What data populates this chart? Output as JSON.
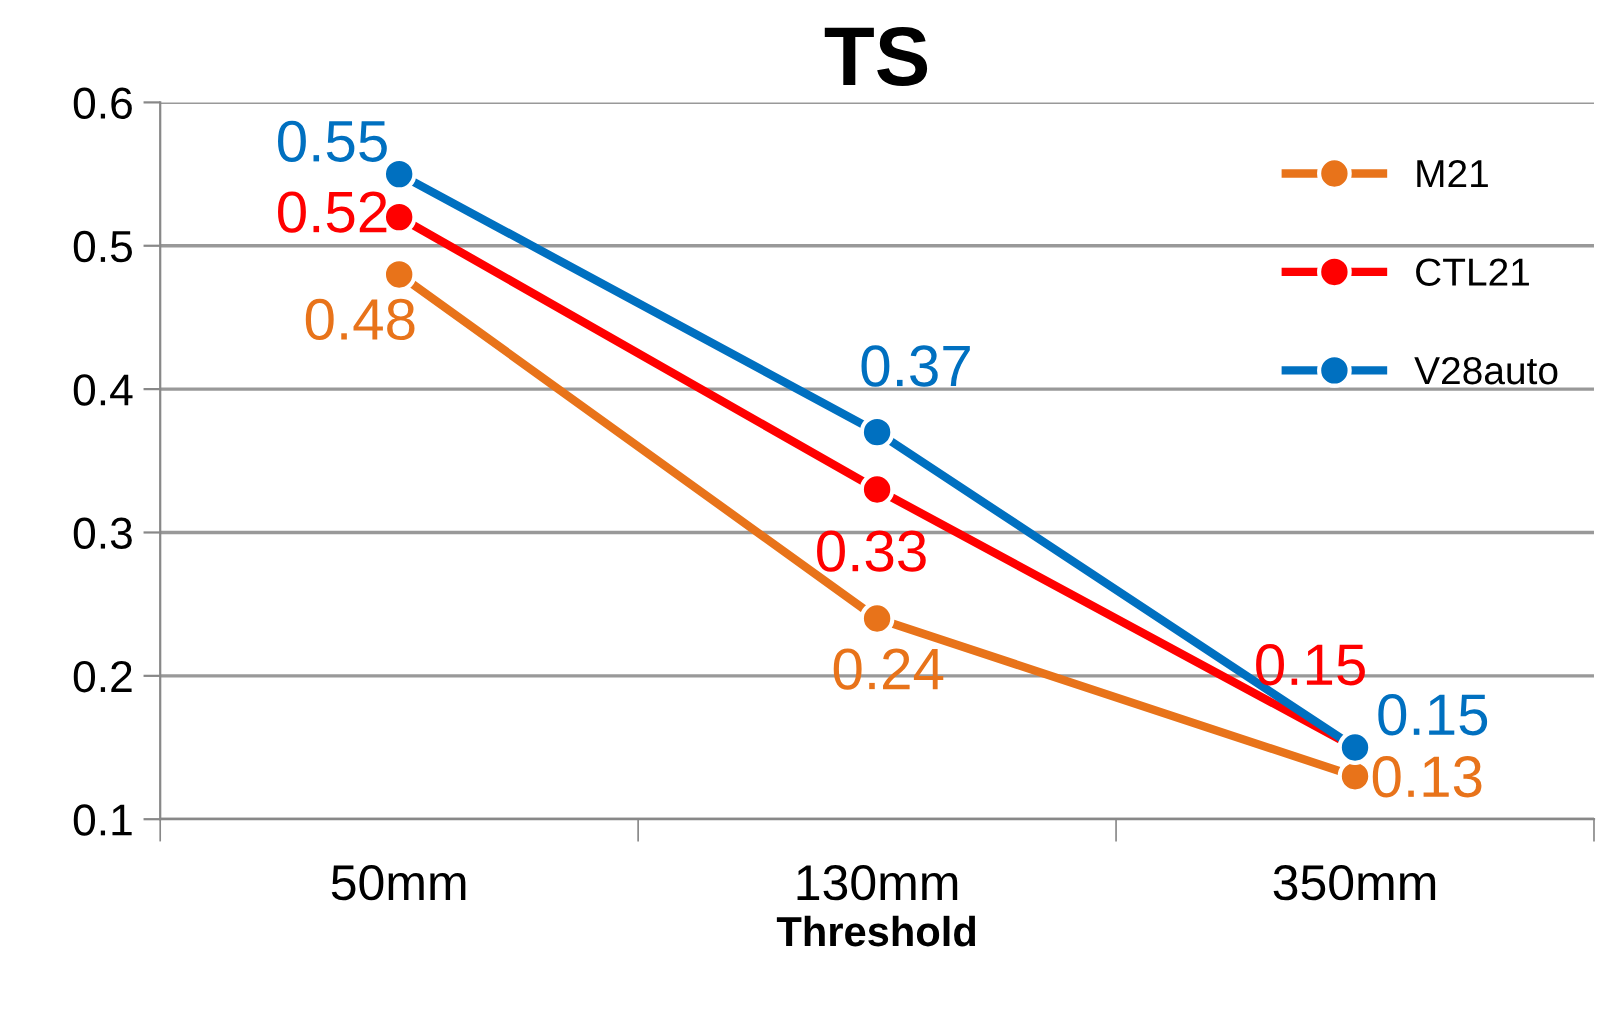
{
  "chart_data": {
    "type": "line",
    "title": "TS",
    "xlabel": "Threshold",
    "categories": [
      "50mm",
      "130mm",
      "350mm"
    ],
    "series": [
      {
        "name": "M21",
        "color": "#e8731a",
        "values": [
          0.48,
          0.24,
          0.13
        ]
      },
      {
        "name": "CTL21",
        "color": "#ff0000",
        "values": [
          0.52,
          0.33,
          0.15
        ]
      },
      {
        "name": "V28auto",
        "color": "#0070c0",
        "values": [
          0.55,
          0.37,
          0.15
        ]
      }
    ],
    "ylim": [
      0.1,
      0.6
    ],
    "yticks": [
      0.1,
      0.2,
      0.3,
      0.4,
      0.5,
      0.6
    ],
    "grid": "y",
    "legend": "top right",
    "marker": "circle",
    "line_style": "solid",
    "data_labels": true
  }
}
